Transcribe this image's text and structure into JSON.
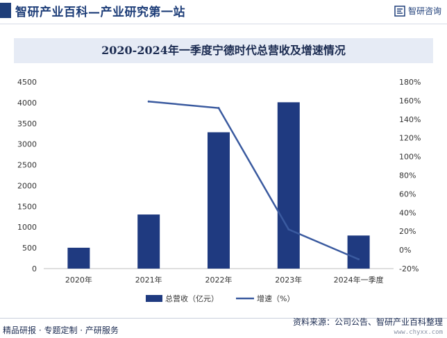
{
  "header": {
    "title": "智研产业百科—产业研究第一站",
    "brand_name": "智研咨询",
    "brand_icon": "zhiyan-logo-icon"
  },
  "footer": {
    "left_text": "精品研报 · 专题定制 · 产研服务",
    "source_text": "资料来源：公司公告、智研产业百科整理",
    "url_text": "www.chyxx.com"
  },
  "colors": {
    "bar": "#1f3a80",
    "line": "#3a5a9f",
    "banner_bg": "#e6ebf5",
    "title": "#1a2a50"
  },
  "chart_data": {
    "type": "bar",
    "title": "2020-2024年一季度宁德时代总营收及增速情况",
    "categories": [
      "2020年",
      "2021年",
      "2022年",
      "2023年",
      "2024年一季度"
    ],
    "series": [
      {
        "name": "总营收（亿元）",
        "type": "bar",
        "axis": "left",
        "values": [
          503,
          1304,
          3286,
          4009,
          797
        ]
      },
      {
        "name": "增速（%）",
        "type": "line",
        "axis": "right",
        "values": [
          null,
          159,
          152,
          22,
          -10
        ]
      }
    ],
    "y_left": {
      "min": 0,
      "max": 4500,
      "ticks": [
        "0",
        "500",
        "1000",
        "1500",
        "2000",
        "2500",
        "3000",
        "3500",
        "4000",
        "4500"
      ]
    },
    "y_right": {
      "min": -20,
      "max": 180,
      "ticks": [
        "-20%",
        "0%",
        "20%",
        "40%",
        "60%",
        "80%",
        "100%",
        "120%",
        "140%",
        "160%",
        "180%"
      ]
    },
    "grid": false,
    "legend_position": "bottom"
  }
}
